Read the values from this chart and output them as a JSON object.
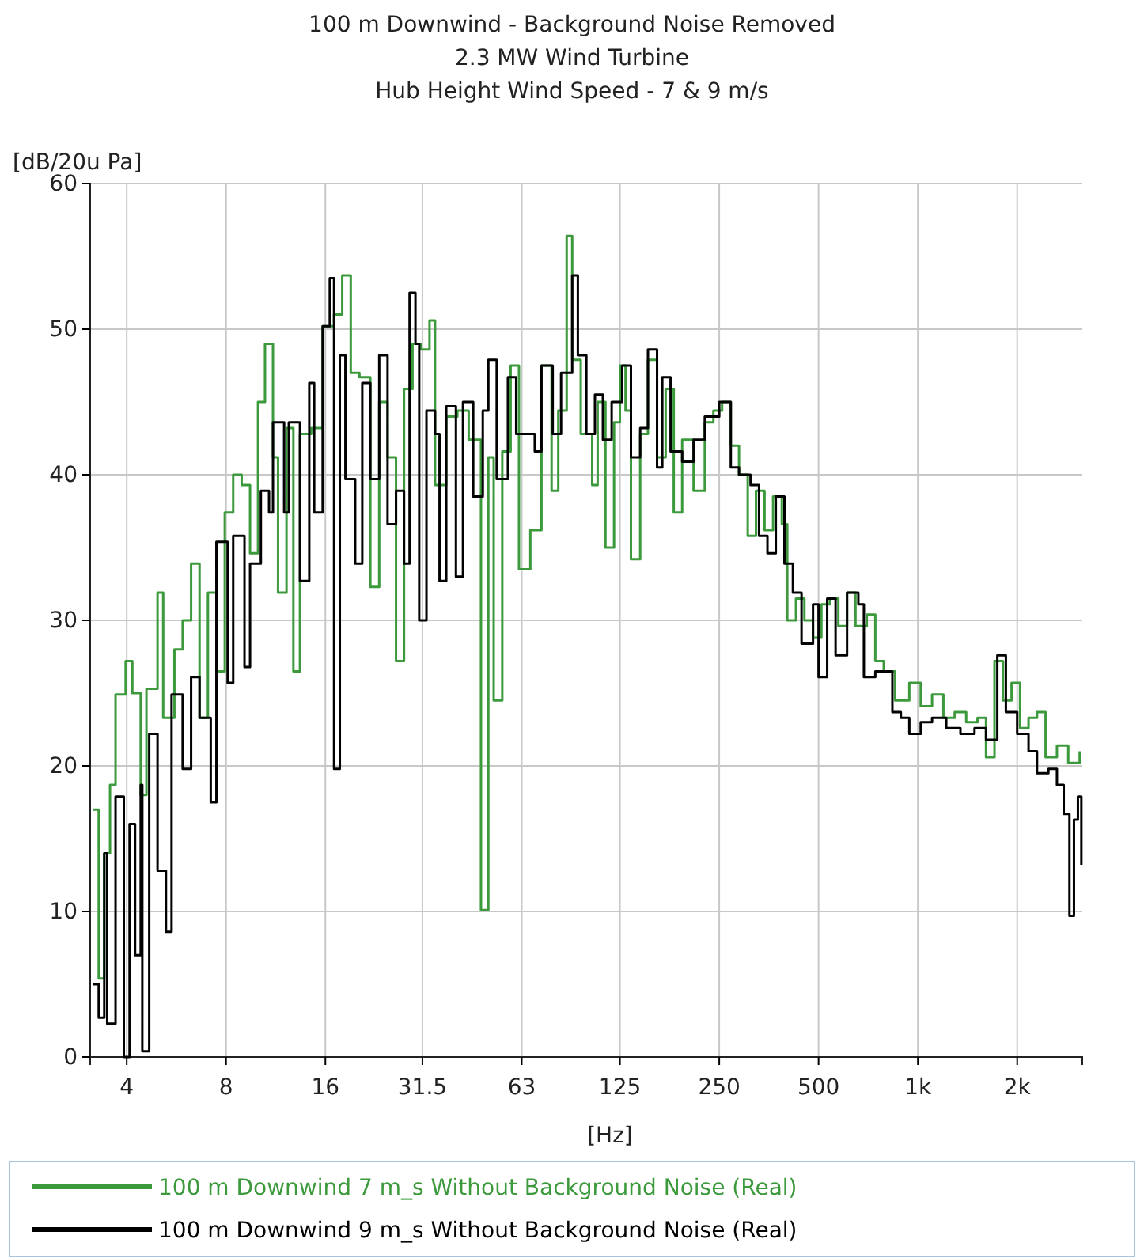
{
  "chart_data": {
    "type": "step",
    "title": "100 m Downwind - Background Noise Removed",
    "subtitle": "2.3 MW Wind Turbine\nHub Height Wind Speed - 7 & 9 m/s",
    "xlabel": "[Hz]",
    "ylabel": "[dB/20u Pa]",
    "log": "x",
    "xlim": [
      3.1,
      3150
    ],
    "xticks": [
      4,
      8,
      16,
      31.5,
      63,
      125,
      250,
      500,
      {
        "value": 1000,
        "label": "1k"
      },
      {
        "value": 2000,
        "label": "2k"
      }
    ],
    "ylim": [
      0,
      60
    ],
    "yticks": [
      0,
      10,
      20,
      30,
      40,
      50,
      60
    ],
    "grid": true,
    "legend": "bottom",
    "line_style": "solid",
    "series": [
      {
        "name": "100 m Downwind 7 m_s Without Background Noise (Real)",
        "color": "#3c9a3c",
        "x": [
          3.16,
          3.29,
          3.42,
          3.56,
          3.7,
          3.97,
          4.16,
          4.41,
          4.59,
          4.96,
          5.16,
          5.58,
          5.91,
          6.27,
          6.65,
          7.05,
          7.48,
          7.93,
          8.41,
          8.92,
          9.46,
          10.0,
          10.5,
          11.1,
          11.5,
          12.2,
          12.8,
          13.4,
          14.5,
          15.7,
          17.0,
          18.0,
          19.1,
          20.3,
          21.9,
          23.3,
          24.7,
          26.2,
          27.7,
          29.4,
          31.2,
          33.1,
          34.4,
          37.2,
          40.2,
          43.5,
          47.4,
          49.9,
          51.8,
          55.0,
          58.3,
          61.8,
          66.9,
          72.3,
          77.6,
          81.3,
          86.2,
          89.6,
          95.1,
          103,
          107,
          113,
          120,
          125,
          130,
          135,
          144,
          152,
          162,
          172,
          182,
          193,
          209,
          226,
          240,
          255,
          271,
          287,
          305,
          323,
          343,
          364,
          387,
          402,
          427,
          453,
          481,
          510,
          541,
          574,
          610,
          647,
          700,
          743,
          788,
          853,
          942,
          1020,
          1104,
          1195,
          1293,
          1401,
          1516,
          1609,
          1707,
          1811,
          1923,
          2040,
          2165,
          2297,
          2438,
          2639,
          2856,
          3093
        ],
        "values": [
          17,
          5.4,
          14,
          18.7,
          24.9,
          27.2,
          25,
          18,
          25.3,
          31.9,
          23.3,
          28,
          30,
          33.9,
          23.3,
          31.9,
          26.5,
          37.4,
          40,
          39.3,
          34.6,
          45,
          49,
          41.2,
          31.9,
          43.2,
          26.5,
          42.8,
          43.2,
          50.2,
          51,
          53.7,
          47,
          46.7,
          32.3,
          45,
          41.2,
          27.2,
          45.9,
          49,
          48.6,
          50.6,
          39.3,
          44,
          44.4,
          42.4,
          10.1,
          41.2,
          24.5,
          41.6,
          47.5,
          33.5,
          36.2,
          47.5,
          38.9,
          44.4,
          56.4,
          47.9,
          42.8,
          39.3,
          45,
          35,
          43.6,
          47.5,
          44.4,
          34.2,
          42.8,
          47.9,
          41.2,
          45.9,
          37.4,
          42.4,
          38.9,
          43.6,
          44.4,
          45,
          42,
          40,
          35.8,
          38.9,
          36.2,
          38.5,
          36.6,
          30,
          31.5,
          30,
          28.8,
          31.1,
          31.5,
          29.6,
          31.9,
          29.6,
          30.4,
          27.2,
          26.5,
          24.5,
          25.7,
          24.1,
          24.9,
          23.3,
          23.7,
          23,
          23.3,
          20.6,
          27.2,
          24.5,
          25.7,
          22.6,
          23.3,
          23.7,
          20.6,
          21.4,
          20.2,
          21
        ]
      },
      {
        "name": "100 m Downwind 9 m_s Without Background Noise (Real)",
        "color": "#000000",
        "x": [
          3.16,
          3.29,
          3.42,
          3.49,
          3.7,
          3.92,
          4.08,
          4.24,
          4.41,
          4.46,
          4.68,
          4.96,
          5.26,
          5.47,
          5.91,
          6.27,
          6.65,
          7.19,
          7.48,
          8.09,
          8.41,
          9.1,
          9.46,
          10.2,
          10.8,
          11.1,
          12.0,
          12.4,
          13.4,
          14.3,
          14.8,
          15.7,
          16.5,
          17.0,
          17.7,
          18.4,
          19.7,
          20.7,
          21.9,
          23.3,
          24.7,
          26.2,
          27.7,
          28.8,
          30.0,
          30.8,
          32.4,
          34.4,
          35.5,
          37.2,
          39.8,
          41.8,
          44.9,
          48.0,
          49.9,
          52.9,
          57.2,
          60.6,
          64.3,
          69.0,
          72.3,
          78.2,
          82.9,
          89.6,
          93.2,
          98.9,
          105,
          111,
          118,
          127,
          135,
          144,
          152,
          162,
          168,
          178,
          193,
          209,
          226,
          250,
          271,
          287,
          311,
          330,
          350,
          371,
          394,
          418,
          444,
          481,
          500,
          531,
          563,
          610,
          660,
          686,
          743,
          788,
          837,
          888,
          942,
          1020,
          1104,
          1219,
          1346,
          1485,
          1609,
          1741,
          1848,
          2000,
          2165,
          2297,
          2487,
          2639,
          2767,
          2880,
          2972,
          3055,
          3130
        ],
        "values": [
          5,
          2.7,
          14,
          2.3,
          17.9,
          0,
          16,
          7,
          18.7,
          0.4,
          22.2,
          12.8,
          8.6,
          24.9,
          19.8,
          26.1,
          23.3,
          17.5,
          35.4,
          25.7,
          35.8,
          26.8,
          33.9,
          38.9,
          37.4,
          43.6,
          37.4,
          43.6,
          32.7,
          46.3,
          37.4,
          50.2,
          53.5,
          19.8,
          48.2,
          39.7,
          33.9,
          46.3,
          39.7,
          48.2,
          36.6,
          38.9,
          33.9,
          52.5,
          49,
          30,
          44.4,
          42.8,
          32.7,
          44.7,
          33,
          45,
          38.5,
          44.4,
          47.9,
          39.7,
          46.7,
          42.8,
          42.8,
          41.6,
          47.5,
          42.8,
          47,
          53.7,
          48.2,
          42.8,
          45.5,
          42.4,
          45,
          47.5,
          41.2,
          43.2,
          48.6,
          40.5,
          46.7,
          41.6,
          40.9,
          42.4,
          44,
          45,
          40.5,
          40,
          39.3,
          35.8,
          34.6,
          38.5,
          33.9,
          31.9,
          28.4,
          31.1,
          26.1,
          31.5,
          27.6,
          31.9,
          31.1,
          26.1,
          26.5,
          26.5,
          23.7,
          23.3,
          22.2,
          23,
          23.3,
          22.6,
          22.2,
          22.6,
          21.8,
          27.6,
          23.7,
          22.2,
          21,
          19.5,
          19.8,
          18.7,
          16.7,
          9.7,
          16.3,
          17.9,
          13.2
        ]
      }
    ]
  }
}
